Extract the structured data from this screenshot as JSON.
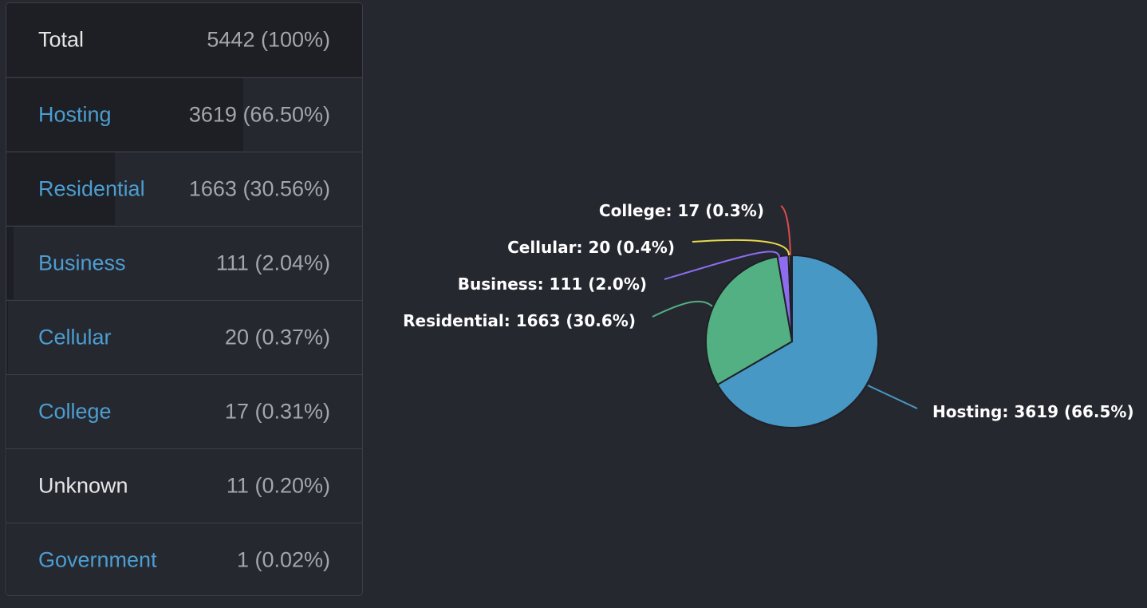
{
  "table": {
    "total": {
      "label": "Total",
      "value": "5442 (100%)"
    },
    "rows": [
      {
        "label": "Hosting",
        "value": "3619 (66.50%)",
        "share": 0.665,
        "link": true
      },
      {
        "label": "Residential",
        "value": "1663 (30.56%)",
        "share": 0.3056,
        "link": true
      },
      {
        "label": "Business",
        "value": "111 (2.04%)",
        "share": 0.0204,
        "link": true
      },
      {
        "label": "Cellular",
        "value": "20 (0.37%)",
        "share": 0.0037,
        "link": true
      },
      {
        "label": "College",
        "value": "17 (0.31%)",
        "share": 0.0031,
        "link": true
      },
      {
        "label": "Unknown",
        "value": "11 (0.20%)",
        "share": 0.002,
        "link": false
      },
      {
        "label": "Government",
        "value": "1 (0.02%)",
        "share": 0.0002,
        "link": true
      }
    ]
  },
  "chart_data": {
    "type": "pie",
    "categories": [
      "Hosting",
      "Residential",
      "Business",
      "Cellular",
      "College"
    ],
    "values": [
      3619,
      1663,
      111,
      20,
      17
    ],
    "data_labels": [
      "Hosting: 3619 (66.5%)",
      "Residential: 1663 (30.6%)",
      "Business: 111 (2.0%)",
      "Cellular: 20 (0.4%)",
      "College: 17 (0.3%)"
    ],
    "colors": [
      "#4898c6",
      "#53b083",
      "#8d6cf0",
      "#e7d94e",
      "#d94b4b"
    ],
    "start_angle_deg": 0,
    "direction": "clockwise"
  },
  "colors": {
    "background": "#262830",
    "link": "#4c9dd0",
    "muted_text": "#a4a6ac",
    "border": "#3c3f48"
  }
}
